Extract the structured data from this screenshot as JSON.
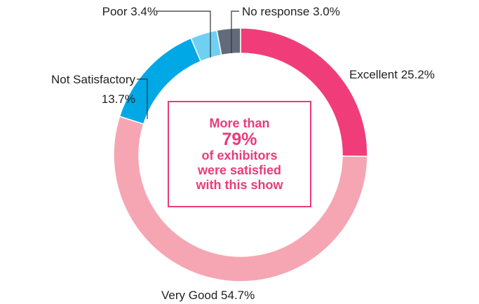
{
  "chart_data": {
    "type": "pie",
    "style": "donut",
    "slices": [
      {
        "label": "Excellent",
        "value": 25.2,
        "display": "Excellent 25.2%",
        "color": "#f03d7a"
      },
      {
        "label": "Very Good",
        "value": 54.7,
        "display": "Very Good 54.7%",
        "color": "#f5a6b2"
      },
      {
        "label": "Not Satisfactory",
        "value": 13.7,
        "display_line1": "Not Satisfactory",
        "display_line2": "13.7%",
        "color": "#00a8e6"
      },
      {
        "label": "Poor",
        "value": 3.4,
        "display": "Poor 3.4%",
        "color": "#6fd0f4"
      },
      {
        "label": "No response",
        "value": 3.0,
        "display": "No response 3.0%",
        "color": "#636b7a"
      }
    ],
    "center_text": {
      "line1": "More than",
      "line2": "79%",
      "line3": "of exhibitors",
      "line4": "were satisfied",
      "line5": "with this show"
    }
  }
}
